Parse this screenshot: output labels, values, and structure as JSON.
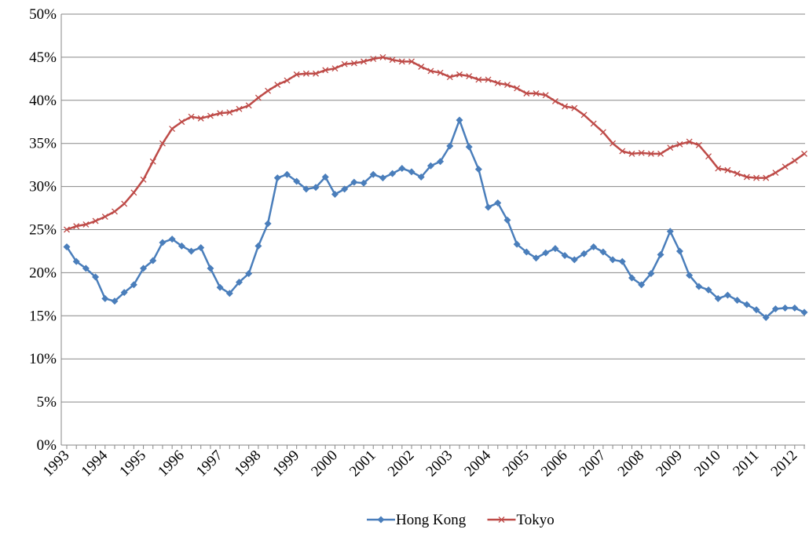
{
  "chart_data": {
    "type": "line",
    "categories": [
      "1993",
      null,
      null,
      null,
      "1994",
      null,
      null,
      null,
      "1995",
      null,
      null,
      null,
      "1996",
      null,
      null,
      null,
      "1997",
      null,
      null,
      null,
      "1998",
      null,
      null,
      null,
      "1999",
      null,
      null,
      null,
      "2000",
      null,
      null,
      null,
      "2001",
      null,
      null,
      null,
      "2002",
      null,
      null,
      null,
      "2003",
      null,
      null,
      null,
      "2004",
      null,
      null,
      null,
      "2005",
      null,
      null,
      null,
      "2006",
      null,
      null,
      null,
      "2007",
      null,
      null,
      null,
      "2008",
      null,
      null,
      null,
      "2009",
      null,
      null,
      null,
      "2010",
      null,
      null,
      null,
      "2011",
      null,
      null,
      null,
      "2012",
      null
    ],
    "series": [
      {
        "name": "Hong Kong",
        "color": "#4a7ebb",
        "marker": "diamond",
        "values": [
          23.0,
          21.3,
          20.5,
          19.5,
          17.0,
          16.7,
          17.7,
          18.6,
          20.5,
          21.4,
          23.5,
          23.9,
          23.1,
          22.5,
          22.9,
          20.5,
          18.3,
          17.6,
          18.9,
          19.9,
          23.1,
          25.7,
          31.0,
          31.4,
          30.6,
          29.7,
          29.9,
          31.1,
          29.1,
          29.7,
          30.5,
          30.4,
          31.4,
          31.0,
          31.5,
          32.1,
          31.7,
          31.1,
          32.4,
          32.9,
          34.7,
          37.7,
          34.6,
          32.0,
          27.6,
          28.1,
          26.1,
          23.3,
          22.4,
          21.7,
          22.3,
          22.8,
          22.0,
          21.5,
          22.2,
          23.0,
          22.4,
          21.5,
          21.3,
          19.4,
          18.6,
          19.9,
          22.1,
          24.8,
          22.5,
          19.7,
          18.4,
          18.0,
          17.0,
          17.4,
          16.8,
          16.3,
          15.7,
          14.8,
          15.8,
          15.9,
          15.9,
          15.4
        ]
      },
      {
        "name": "Tokyo",
        "color": "#be4b48",
        "marker": "cross",
        "values": [
          25.0,
          25.4,
          25.6,
          26.0,
          26.5,
          27.1,
          28.0,
          29.3,
          30.8,
          32.9,
          35.0,
          36.7,
          37.5,
          38.1,
          37.9,
          38.2,
          38.5,
          38.6,
          39.0,
          39.4,
          40.3,
          41.1,
          41.8,
          42.3,
          43.0,
          43.1,
          43.1,
          43.5,
          43.7,
          44.2,
          44.3,
          44.5,
          44.8,
          45.0,
          44.7,
          44.5,
          44.5,
          43.9,
          43.4,
          43.2,
          42.7,
          43.0,
          42.8,
          42.4,
          42.4,
          42.0,
          41.8,
          41.4,
          40.8,
          40.8,
          40.6,
          39.9,
          39.3,
          39.1,
          38.3,
          37.3,
          36.3,
          35.0,
          34.1,
          33.8,
          33.9,
          33.8,
          33.8,
          34.5,
          34.9,
          35.2,
          34.8,
          33.5,
          32.1,
          31.9,
          31.5,
          31.1,
          31.0,
          31.0,
          31.6,
          32.3,
          33.0,
          33.8
        ]
      }
    ],
    "ylim": [
      0,
      50
    ],
    "yticks": [
      {
        "value": 0,
        "label": "0%"
      },
      {
        "value": 5,
        "label": "5%"
      },
      {
        "value": 10,
        "label": "10%"
      },
      {
        "value": 15,
        "label": "15%"
      },
      {
        "value": 20,
        "label": "20%"
      },
      {
        "value": 25,
        "label": "25%"
      },
      {
        "value": 30,
        "label": "30%"
      },
      {
        "value": 35,
        "label": "35%"
      },
      {
        "value": 40,
        "label": "40%"
      },
      {
        "value": 45,
        "label": "45%"
      },
      {
        "value": 50,
        "label": "50%"
      }
    ],
    "grid": true,
    "legend": "bottom"
  }
}
